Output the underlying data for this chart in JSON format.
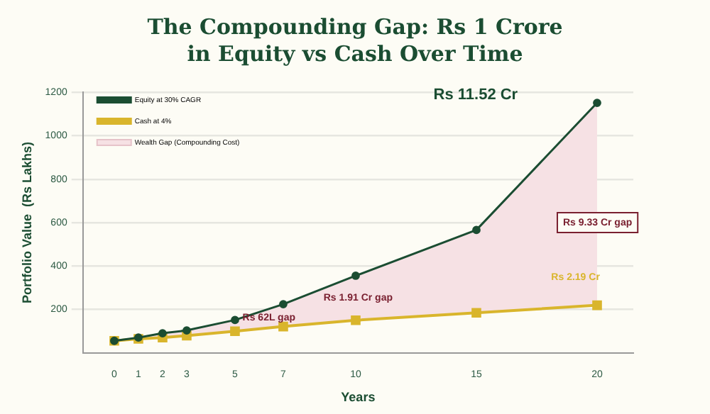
{
  "chart_data": {
    "type": "line",
    "title": "The Compounding Gap: Rs 1 Crore in Equity vs Cash Over Time",
    "xlabel": "Years",
    "ylabel": "Portfolio Value  (Rs Lakhs)",
    "x": [
      0,
      1,
      2,
      3,
      5,
      7,
      10,
      15,
      20
    ],
    "series": [
      {
        "name": "Equity at 30% CAGR",
        "color": "#1b4d32",
        "values": [
          55,
          70,
          90,
          103,
          151,
          224,
          355,
          566,
          1152
        ]
      },
      {
        "name": "Cash at 4%",
        "color": "#d9b52c",
        "marker": "square",
        "values": [
          55,
          64,
          70,
          79,
          99,
          121,
          150,
          184,
          219
        ]
      },
      {
        "name": "Wealth Gap (Compounding Cost)",
        "type": "area",
        "color": "#f6e1e4",
        "values": [
          null,
          null,
          null,
          null,
          null,
          null,
          null,
          null,
          null
        ],
        "lower": [
          55,
          64,
          70,
          79,
          99,
          121,
          150,
          184,
          219
        ],
        "upper": [
          55,
          70,
          90,
          103,
          151,
          224,
          355,
          566,
          1152
        ]
      }
    ],
    "xlim": [
      -1.3,
      21.5
    ],
    "xticks": [
      0,
      1,
      2,
      3,
      5,
      7,
      10,
      15,
      20
    ],
    "ylim": [
      0,
      1200
    ],
    "yticks": [
      200,
      400,
      600,
      800,
      1000,
      1200
    ],
    "grid": "y",
    "legend": "top left",
    "marker": "circle",
    "annotations": [
      "Rs 11.52 Cr",
      "Rs 9.33 Cr gap",
      "Rs 2.19 Cr",
      "Rs 1.91 Cr gap",
      "Rs 62L gap"
    ]
  }
}
